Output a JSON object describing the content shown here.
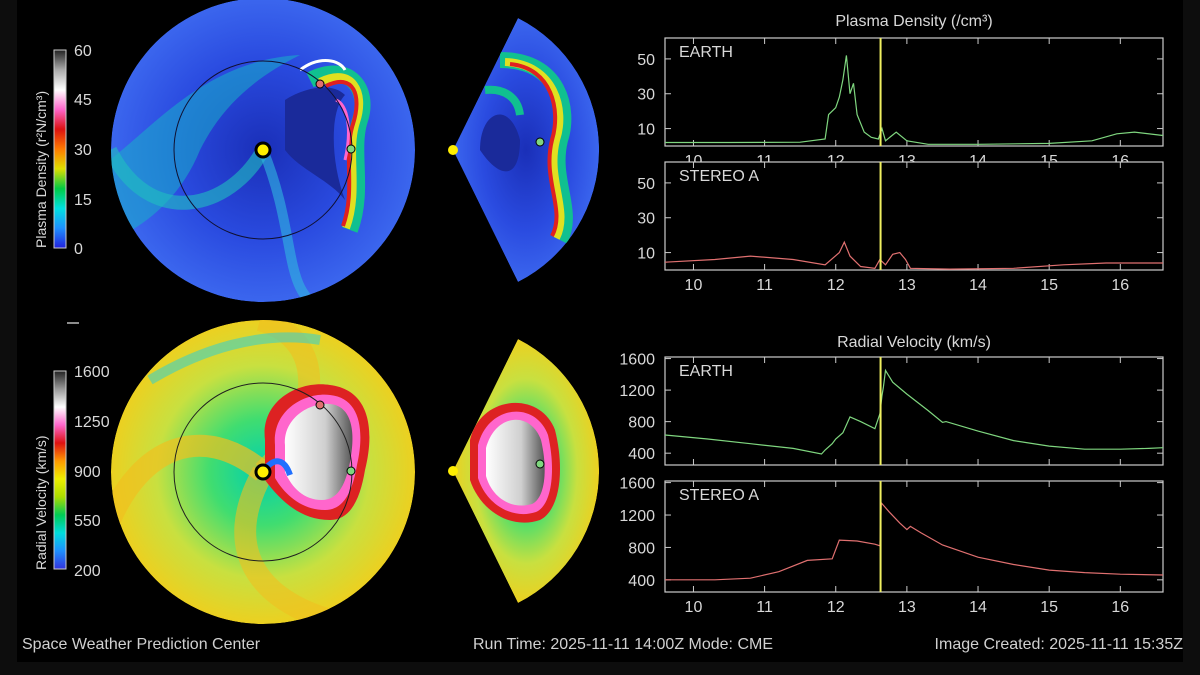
{
  "footer": {
    "left": "Space Weather Prediction Center",
    "center": "Run Time: 2025-11-11 14:00Z  Mode: CME",
    "right": "Image Created: 2025-11-11 15:35Z"
  },
  "colors": {
    "earth_series": "#7fd67f",
    "stereo_series": "#e07070",
    "current_time_marker": "#f0f060",
    "frame": "#cccccc",
    "density_background": "#2a4be0",
    "velocity_background": "#e8e030"
  },
  "colorbars": [
    {
      "label": "Plasma Density (r²N/cm³)",
      "ticks": [
        "60",
        "45",
        "30",
        "15",
        "0"
      ],
      "stops": [
        "#2222dd",
        "#1e90ff",
        "#00e0e0",
        "#00cc44",
        "#e0e000",
        "#ff7a00",
        "#dd1111",
        "#ff66cc",
        "#ffffff",
        "#aaaaaa",
        "#222222"
      ]
    },
    {
      "label": "Radial Velocity (km/s)",
      "ticks": [
        "1600",
        "1250",
        "900",
        "550",
        "200"
      ],
      "stops": [
        "#3333dd",
        "#1e90ff",
        "#00dddd",
        "#00cc55",
        "#aadd00",
        "#eeee00",
        "#ff9900",
        "#dd1111",
        "#ff66cc",
        "#ffffff",
        "#999999",
        "#222222"
      ]
    }
  ],
  "legend_dots": {
    "sun": "#ffee00",
    "earth": "#7fd67f",
    "stereo_a": "#e07070"
  },
  "chart_data": [
    {
      "type": "line",
      "title": "Plasma Density (/cm³)",
      "panel_label": "EARTH",
      "xlim": [
        9.6,
        16.6
      ],
      "x_ticks": [
        10,
        11,
        12,
        13,
        14,
        15,
        16
      ],
      "y_ticks": [
        10,
        30,
        50
      ],
      "ylim": [
        0,
        62
      ],
      "current_time": 12.63,
      "series": [
        {
          "points": [
            [
              9.6,
              2
            ],
            [
              10.5,
              2
            ],
            [
              11.5,
              2.2
            ],
            [
              11.85,
              4
            ],
            [
              11.9,
              18
            ],
            [
              12.0,
              22
            ],
            [
              12.05,
              28
            ],
            [
              12.1,
              38
            ],
            [
              12.15,
              52
            ],
            [
              12.2,
              30
            ],
            [
              12.25,
              36
            ],
            [
              12.3,
              18
            ],
            [
              12.4,
              8
            ],
            [
              12.5,
              5
            ],
            [
              12.6,
              4
            ],
            [
              12.65,
              10
            ],
            [
              12.7,
              3
            ],
            [
              12.85,
              8
            ],
            [
              13.0,
              3
            ],
            [
              13.3,
              1
            ],
            [
              14.0,
              1
            ],
            [
              15.0,
              1.5
            ],
            [
              15.6,
              3
            ],
            [
              15.95,
              7
            ],
            [
              16.2,
              8
            ],
            [
              16.6,
              6
            ]
          ]
        }
      ]
    },
    {
      "type": "line",
      "title": "",
      "panel_label": "STEREO A",
      "xlim": [
        9.6,
        16.6
      ],
      "x_ticks": [
        10,
        11,
        12,
        13,
        14,
        15,
        16
      ],
      "y_ticks": [
        10,
        30,
        50
      ],
      "ylim": [
        0,
        62
      ],
      "current_time": 12.63,
      "series": [
        {
          "points": [
            [
              9.6,
              4.5
            ],
            [
              10.3,
              6
            ],
            [
              10.8,
              8
            ],
            [
              11.4,
              6
            ],
            [
              11.85,
              3
            ],
            [
              12.05,
              10
            ],
            [
              12.12,
              16
            ],
            [
              12.2,
              8
            ],
            [
              12.35,
              2
            ],
            [
              12.55,
              1
            ],
            [
              12.62,
              6
            ],
            [
              12.7,
              3
            ],
            [
              12.8,
              9
            ],
            [
              12.9,
              10
            ],
            [
              12.98,
              6
            ],
            [
              13.05,
              1
            ],
            [
              13.6,
              0.5
            ],
            [
              14.5,
              1
            ],
            [
              15.2,
              3
            ],
            [
              15.8,
              4
            ],
            [
              16.6,
              4
            ]
          ]
        }
      ]
    },
    {
      "type": "line",
      "title": "Radial Velocity (km/s)",
      "panel_label": "EARTH",
      "xlim": [
        9.6,
        16.6
      ],
      "x_ticks": [],
      "y_ticks": [
        400,
        800,
        1200,
        1600
      ],
      "ylim": [
        250,
        1620
      ],
      "current_time": 12.63,
      "series": [
        {
          "points": [
            [
              9.6,
              630
            ],
            [
              10.2,
              580
            ],
            [
              10.8,
              520
            ],
            [
              11.4,
              460
            ],
            [
              11.8,
              390
            ],
            [
              11.85,
              440
            ],
            [
              11.95,
              520
            ],
            [
              12.0,
              580
            ],
            [
              12.1,
              660
            ],
            [
              12.2,
              860
            ],
            [
              12.35,
              800
            ],
            [
              12.55,
              710
            ],
            [
              12.62,
              900
            ],
            [
              12.65,
              1130
            ],
            [
              12.67,
              1240
            ],
            [
              12.7,
              1450
            ],
            [
              12.8,
              1300
            ],
            [
              13.0,
              1150
            ],
            [
              13.3,
              940
            ],
            [
              13.5,
              790
            ],
            [
              13.55,
              800
            ],
            [
              14.0,
              680
            ],
            [
              14.5,
              560
            ],
            [
              15.0,
              490
            ],
            [
              15.5,
              450
            ],
            [
              16.0,
              450
            ],
            [
              16.4,
              460
            ],
            [
              16.6,
              470
            ]
          ]
        }
      ]
    },
    {
      "type": "line",
      "title": "",
      "panel_label": "STEREO A",
      "xlim": [
        9.6,
        16.6
      ],
      "x_ticks": [
        10,
        11,
        12,
        13,
        14,
        15,
        16
      ],
      "y_ticks": [
        400,
        800,
        1200,
        1600
      ],
      "ylim": [
        250,
        1620
      ],
      "current_time": 12.63,
      "series": [
        {
          "points": [
            [
              9.6,
              400
            ],
            [
              10.3,
              400
            ],
            [
              10.8,
              420
            ],
            [
              11.2,
              500
            ],
            [
              11.6,
              640
            ],
            [
              11.95,
              660
            ],
            [
              12.05,
              890
            ],
            [
              12.3,
              880
            ],
            [
              12.55,
              840
            ],
            [
              12.62,
              820
            ],
            [
              12.64,
              1350
            ],
            [
              12.75,
              1240
            ],
            [
              12.9,
              1100
            ],
            [
              13.0,
              1020
            ],
            [
              13.05,
              1060
            ],
            [
              13.2,
              980
            ],
            [
              13.5,
              830
            ],
            [
              14.0,
              680
            ],
            [
              14.5,
              590
            ],
            [
              15.0,
              520
            ],
            [
              15.5,
              490
            ],
            [
              16.0,
              470
            ],
            [
              16.6,
              460
            ]
          ]
        }
      ]
    }
  ]
}
